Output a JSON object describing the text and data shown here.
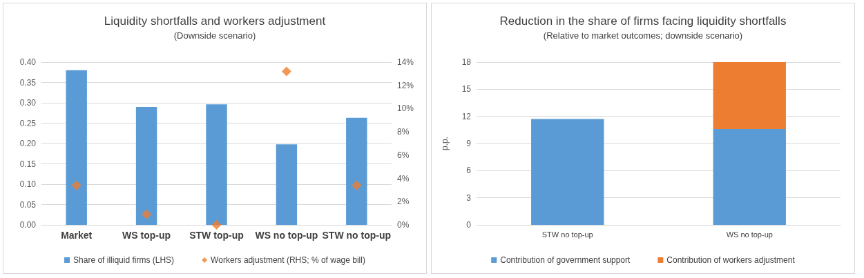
{
  "chart_data": [
    {
      "type": "bar",
      "title": "Liquidity shortfalls and workers adjustment",
      "subtitle": "(Downside scenario)",
      "categories": [
        "Market",
        "WS top-up",
        "STW top-up",
        "WS no top-up",
        "STW no top-up"
      ],
      "series": [
        {
          "name": "Share of illiquid firms (LHS)",
          "color": "#5b9bd5",
          "values": [
            0.38,
            0.29,
            0.296,
            0.198,
            0.263
          ]
        },
        {
          "name": "Workers adjustment (RHS; % of wage bill)",
          "type": "scatter",
          "axis": "y2",
          "color": "#ed7d31",
          "values": [
            3.4,
            0.9,
            0.0,
            13.2,
            3.4
          ]
        }
      ],
      "ylim": [
        0,
        0.4
      ],
      "yticks": [
        {
          "value": 0,
          "label": "0.00"
        },
        {
          "value": 0.05,
          "label": "0.05"
        },
        {
          "value": 0.1,
          "label": "0.10"
        },
        {
          "value": 0.15,
          "label": "0.15"
        },
        {
          "value": 0.2,
          "label": "0.20"
        },
        {
          "value": 0.25,
          "label": "0.25"
        },
        {
          "value": 0.3,
          "label": "0.30"
        },
        {
          "value": 0.35,
          "label": "0.35"
        },
        {
          "value": 0.4,
          "label": "0.40"
        }
      ],
      "y2lim": [
        0,
        14
      ],
      "y2ticks": [
        {
          "value": 0,
          "label": "0%"
        },
        {
          "value": 2,
          "label": "2%"
        },
        {
          "value": 4,
          "label": "4%"
        },
        {
          "value": 6,
          "label": "6%"
        },
        {
          "value": 8,
          "label": "8%"
        },
        {
          "value": 10,
          "label": "10%"
        },
        {
          "value": 12,
          "label": "12%"
        },
        {
          "value": 14,
          "label": "14%"
        }
      ],
      "grid": "y",
      "legend": "bottom",
      "marker": "diamond"
    },
    {
      "type": "bar",
      "title": "Reduction in the share of firms facing liquidity shortfalls",
      "subtitle": "(Relative to market outcomes; downside scenario)",
      "ylabel": "p.p.",
      "categories": [
        "STW no top-up",
        "WS no top-up"
      ],
      "series": [
        {
          "name": "Contribution of government support",
          "color": "#5b9bd5",
          "values": [
            11.7,
            10.6
          ]
        },
        {
          "name": "Contribution of workers adjustment",
          "color": "#ed7d31",
          "values": [
            0,
            7.4
          ]
        }
      ],
      "stacked": true,
      "ylim": [
        0,
        18
      ],
      "yticks": [
        0,
        3,
        6,
        9,
        12,
        15,
        18
      ],
      "grid": "y",
      "legend": "bottom"
    }
  ]
}
